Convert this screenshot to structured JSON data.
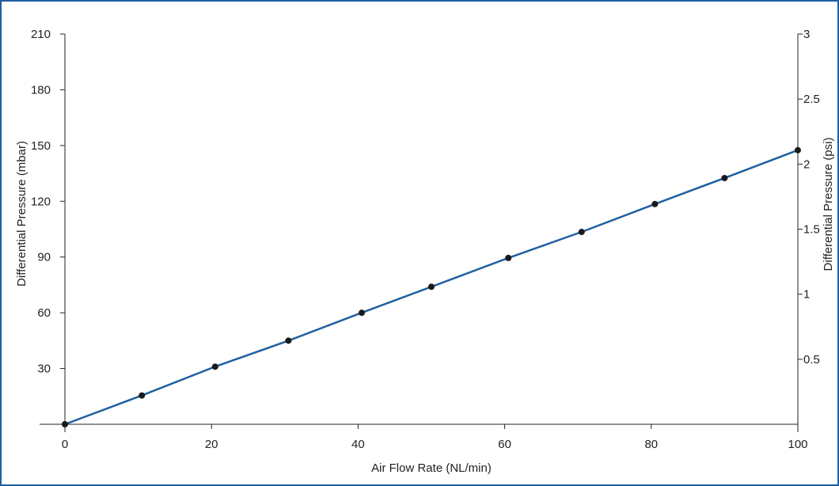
{
  "chart_data": {
    "type": "line",
    "title": "",
    "xlabel": "Air Flow Rate (NL/min)",
    "ylabel": "Differential Pressure (mbar)",
    "y2label": "Differential Pressure (psi)",
    "xlim": [
      0,
      100
    ],
    "ylim": [
      0,
      210
    ],
    "y2lim": [
      0,
      3
    ],
    "x_ticks": [
      0,
      20,
      40,
      60,
      80,
      100
    ],
    "y_ticks": [
      30,
      60,
      90,
      120,
      150,
      180,
      210
    ],
    "y2_ticks": [
      "0.5",
      "1",
      "1.5",
      "2",
      "2.5",
      "3"
    ],
    "grid": false,
    "series": [
      {
        "x": [
          0,
          10.5,
          20.5,
          30.5,
          40.5,
          50,
          60.5,
          70.5,
          80.5,
          90,
          100
        ],
        "y": [
          0,
          15.5,
          31,
          45,
          60,
          74,
          89.5,
          103.5,
          118.5,
          132.5,
          147.5
        ],
        "color": "#1f5fa0",
        "marker_color": "#1a1a1a"
      }
    ]
  }
}
